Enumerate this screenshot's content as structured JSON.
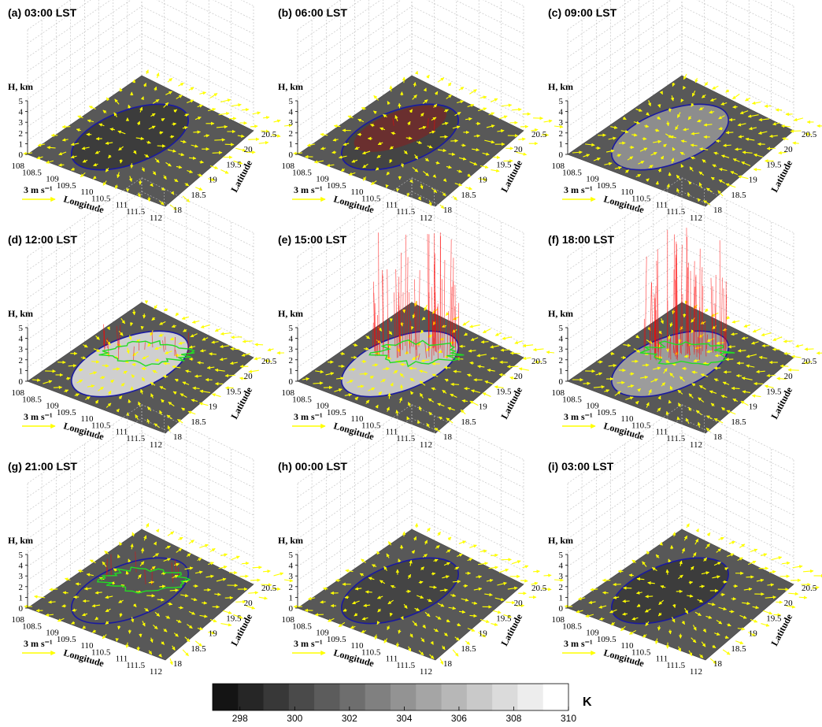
{
  "chart_data": {
    "type": "surface-3d-panels",
    "panels": [
      {
        "label": "(a) 03:00 LST",
        "brightness": 0.18,
        "rain": 0.0,
        "tint": "none"
      },
      {
        "label": "(b) 06:00 LST",
        "brightness": 0.22,
        "rain": 0.05,
        "tint": "red"
      },
      {
        "label": "(c) 09:00 LST",
        "brightness": 0.55,
        "rain": 0.0,
        "tint": "none"
      },
      {
        "label": "(d) 12:00 LST",
        "brightness": 0.85,
        "rain": 0.3,
        "tint": "none"
      },
      {
        "label": "(e) 15:00 LST",
        "brightness": 0.8,
        "rain": 1.0,
        "tint": "none"
      },
      {
        "label": "(f) 18:00 LST",
        "brightness": 0.62,
        "rain": 1.0,
        "tint": "none"
      },
      {
        "label": "(g) 21:00 LST",
        "brightness": 0.3,
        "rain": 0.15,
        "tint": "none"
      },
      {
        "label": "(h) 00:00 LST",
        "brightness": 0.22,
        "rain": 0.0,
        "tint": "none"
      },
      {
        "label": "(i) 03:00 LST",
        "brightness": 0.18,
        "rain": 0.0,
        "tint": "none"
      }
    ],
    "zlabel": "H, km",
    "xlabel": "Longitude",
    "ylabel": "Latitude",
    "zticks": [
      "0",
      "1",
      "2",
      "3",
      "4",
      "5"
    ],
    "xticks": [
      "108",
      "108.5",
      "109",
      "109.5",
      "110",
      "110.5",
      "111",
      "111.5",
      "112"
    ],
    "yticks": [
      "18",
      "18.5",
      "19",
      "19.5",
      "20",
      "20.5"
    ],
    "wind_scale": "3 m s⁻¹",
    "colorbar": {
      "unit": "K",
      "min": 297,
      "max": 310,
      "ticks": [
        "298",
        "300",
        "302",
        "304",
        "306",
        "308",
        "310"
      ]
    }
  },
  "colors": {
    "arrow": "#ffff00",
    "coast": "#1a1aa0",
    "rain": "#ff0000",
    "cloud_contour": "#22dd22",
    "surface": "#585858"
  }
}
